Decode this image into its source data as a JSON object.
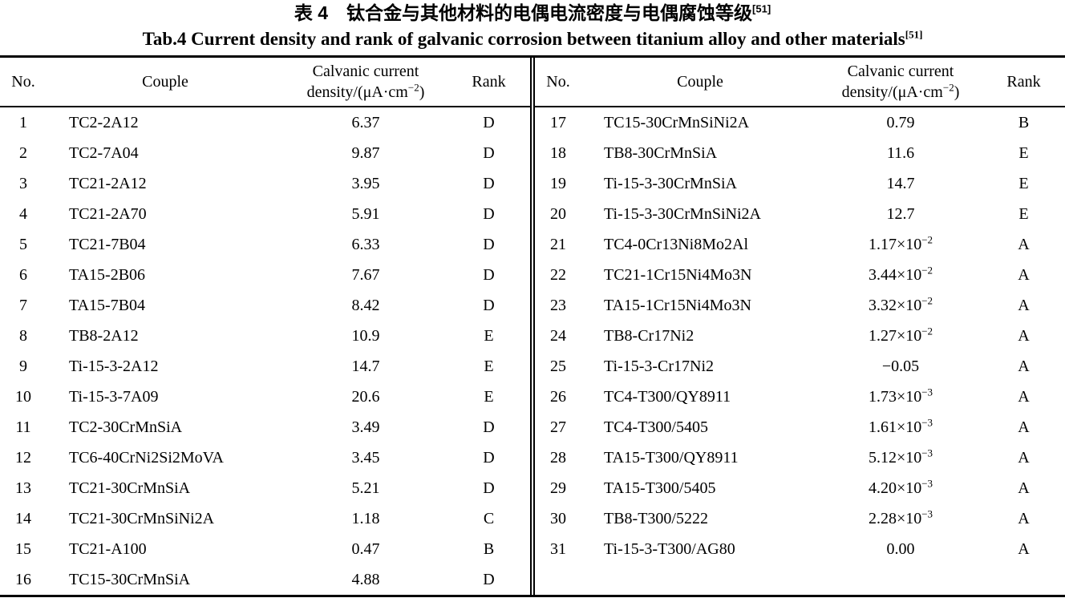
{
  "title": {
    "zh": "表 4　钛合金与其他材料的电偶电流密度与电偶腐蚀等级",
    "zh_ref": "[51]",
    "en": "Tab.4 Current density and rank of galvanic corrosion between titanium alloy and other materials",
    "en_ref": "[51]"
  },
  "colors": {
    "text": "#000000",
    "background": "#ffffff",
    "rule": "#000000"
  },
  "table": {
    "headers": {
      "no": "No.",
      "couple": "Couple",
      "density_line1": "Calvanic current",
      "density_line2_prefix": "density/(μA·cm",
      "density_exp": "−2",
      "density_line2_suffix": ")",
      "rank": "Rank"
    },
    "left_rows": [
      {
        "no": "1",
        "couple": "TC2-2A12",
        "density": "6.37",
        "density_exp": null,
        "rank": "D"
      },
      {
        "no": "2",
        "couple": "TC2-7A04",
        "density": "9.87",
        "density_exp": null,
        "rank": "D"
      },
      {
        "no": "3",
        "couple": "TC21-2A12",
        "density": "3.95",
        "density_exp": null,
        "rank": "D"
      },
      {
        "no": "4",
        "couple": "TC21-2A70",
        "density": "5.91",
        "density_exp": null,
        "rank": "D"
      },
      {
        "no": "5",
        "couple": "TC21-7B04",
        "density": "6.33",
        "density_exp": null,
        "rank": "D"
      },
      {
        "no": "6",
        "couple": "TA15-2B06",
        "density": "7.67",
        "density_exp": null,
        "rank": "D"
      },
      {
        "no": "7",
        "couple": "TA15-7B04",
        "density": "8.42",
        "density_exp": null,
        "rank": "D"
      },
      {
        "no": "8",
        "couple": "TB8-2A12",
        "density": "10.9",
        "density_exp": null,
        "rank": "E"
      },
      {
        "no": "9",
        "couple": "Ti-15-3-2A12",
        "density": "14.7",
        "density_exp": null,
        "rank": "E"
      },
      {
        "no": "10",
        "couple": "Ti-15-3-7A09",
        "density": "20.6",
        "density_exp": null,
        "rank": "E"
      },
      {
        "no": "11",
        "couple": "TC2-30CrMnSiA",
        "density": "3.49",
        "density_exp": null,
        "rank": "D"
      },
      {
        "no": "12",
        "couple": "TC6-40CrNi2Si2MoVA",
        "density": "3.45",
        "density_exp": null,
        "rank": "D"
      },
      {
        "no": "13",
        "couple": "TC21-30CrMnSiA",
        "density": "5.21",
        "density_exp": null,
        "rank": "D"
      },
      {
        "no": "14",
        "couple": "TC21-30CrMnSiNi2A",
        "density": "1.18",
        "density_exp": null,
        "rank": "C"
      },
      {
        "no": "15",
        "couple": "TC21-A100",
        "density": "0.47",
        "density_exp": null,
        "rank": "B"
      },
      {
        "no": "16",
        "couple": "TC15-30CrMnSiA",
        "density": "4.88",
        "density_exp": null,
        "rank": "D"
      }
    ],
    "right_rows": [
      {
        "no": "17",
        "couple": "TC15-30CrMnSiNi2A",
        "density": "0.79",
        "density_exp": null,
        "rank": "B"
      },
      {
        "no": "18",
        "couple": "TB8-30CrMnSiA",
        "density": "11.6",
        "density_exp": null,
        "rank": "E"
      },
      {
        "no": "19",
        "couple": "Ti-15-3-30CrMnSiA",
        "density": "14.7",
        "density_exp": null,
        "rank": "E"
      },
      {
        "no": "20",
        "couple": "Ti-15-3-30CrMnSiNi2A",
        "density": "12.7",
        "density_exp": null,
        "rank": "E"
      },
      {
        "no": "21",
        "couple": "TC4-0Cr13Ni8Mo2Al",
        "density": "1.17×10",
        "density_exp": "−2",
        "rank": "A"
      },
      {
        "no": "22",
        "couple": "TC21-1Cr15Ni4Mo3N",
        "density": "3.44×10",
        "density_exp": "−2",
        "rank": "A"
      },
      {
        "no": "23",
        "couple": "TA15-1Cr15Ni4Mo3N",
        "density": "3.32×10",
        "density_exp": "−2",
        "rank": "A"
      },
      {
        "no": "24",
        "couple": "TB8-Cr17Ni2",
        "density": "1.27×10",
        "density_exp": "−2",
        "rank": "A"
      },
      {
        "no": "25",
        "couple": "Ti-15-3-Cr17Ni2",
        "density": "−0.05",
        "density_exp": null,
        "rank": "A"
      },
      {
        "no": "26",
        "couple": "TC4-T300/QY8911",
        "density": "1.73×10",
        "density_exp": "−3",
        "rank": "A"
      },
      {
        "no": "27",
        "couple": "TC4-T300/5405",
        "density": "1.61×10",
        "density_exp": "−3",
        "rank": "A"
      },
      {
        "no": "28",
        "couple": "TA15-T300/QY8911",
        "density": "5.12×10",
        "density_exp": "−3",
        "rank": "A"
      },
      {
        "no": "29",
        "couple": "TA15-T300/5405",
        "density": "4.20×10",
        "density_exp": "−3",
        "rank": "A"
      },
      {
        "no": "30",
        "couple": "TB8-T300/5222",
        "density": "2.28×10",
        "density_exp": "−3",
        "rank": "A"
      },
      {
        "no": "31",
        "couple": "Ti-15-3-T300/AG80",
        "density": "0.00",
        "density_exp": null,
        "rank": "A"
      }
    ]
  }
}
